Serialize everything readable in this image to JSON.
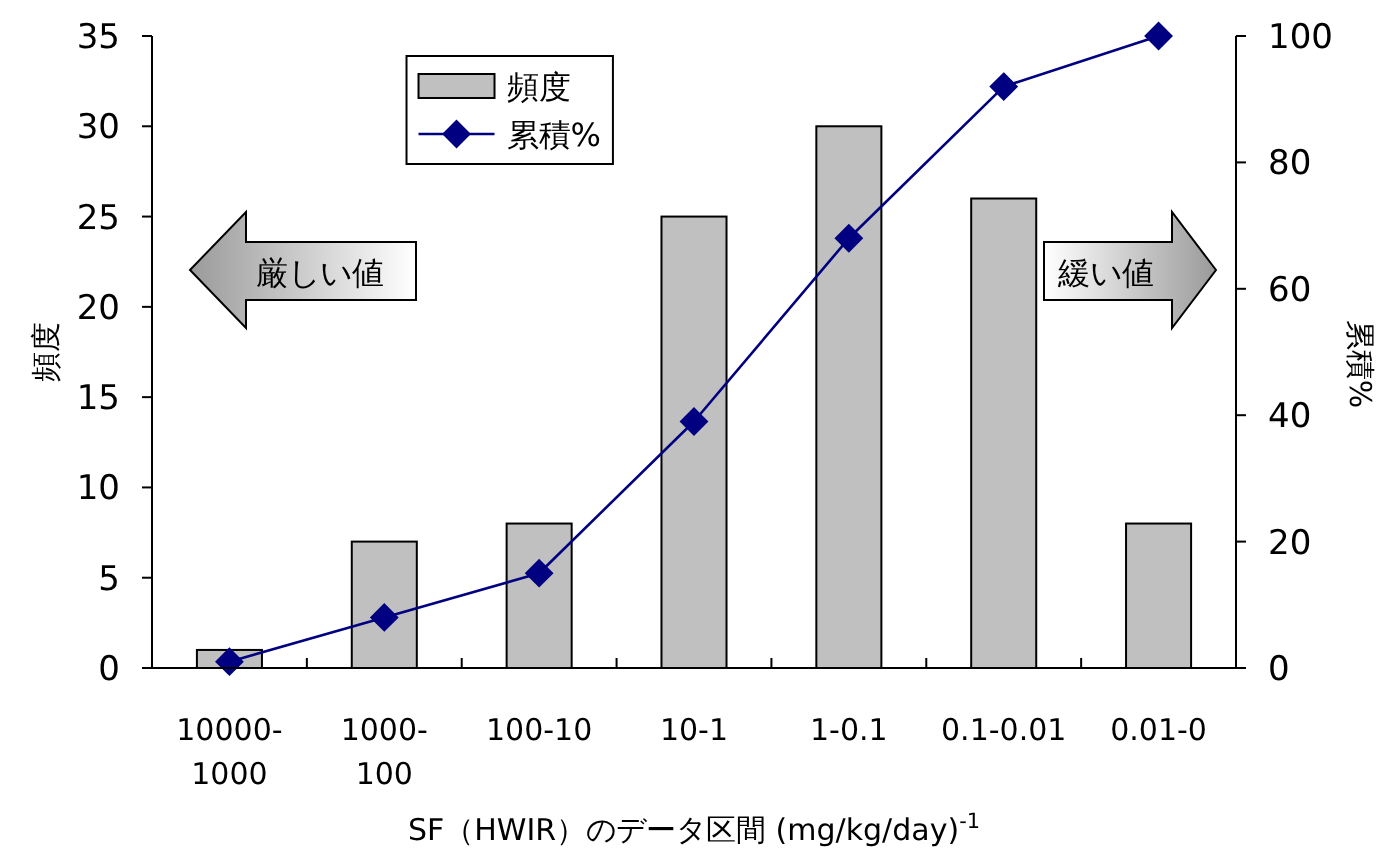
{
  "chart_data": {
    "type": "bar",
    "categories": [
      "10000-1000",
      "1000-100",
      "100-10",
      "10-1",
      "1-0.1",
      "0.1-0.01",
      "0.01-0"
    ],
    "series": [
      {
        "name": "頻度",
        "color": "#c0c0c0",
        "values": [
          1,
          7,
          8,
          25,
          30,
          26,
          8
        ]
      },
      {
        "name": "累積%",
        "type": "line",
        "axis": "y2",
        "color": "#000080",
        "values": [
          1,
          8,
          15,
          39,
          68,
          92,
          100
        ]
      }
    ],
    "marker": "diamond",
    "line_style": "solid",
    "xlabel": "SF（HWIR）のデータ区間 (mg/kg/day)$^{-1}$",
    "ylabel": "頻度",
    "y2label": "累積%",
    "ylim": [
      0,
      35
    ],
    "yticks": [
      0,
      5,
      10,
      15,
      20,
      25,
      30,
      35
    ],
    "y2lim": [
      0,
      100
    ],
    "y2ticks": [
      0,
      20,
      40,
      60,
      80,
      100
    ],
    "grid": false,
    "legend": "top",
    "annotations": [
      "厳しい値",
      "緩い値"
    ]
  }
}
